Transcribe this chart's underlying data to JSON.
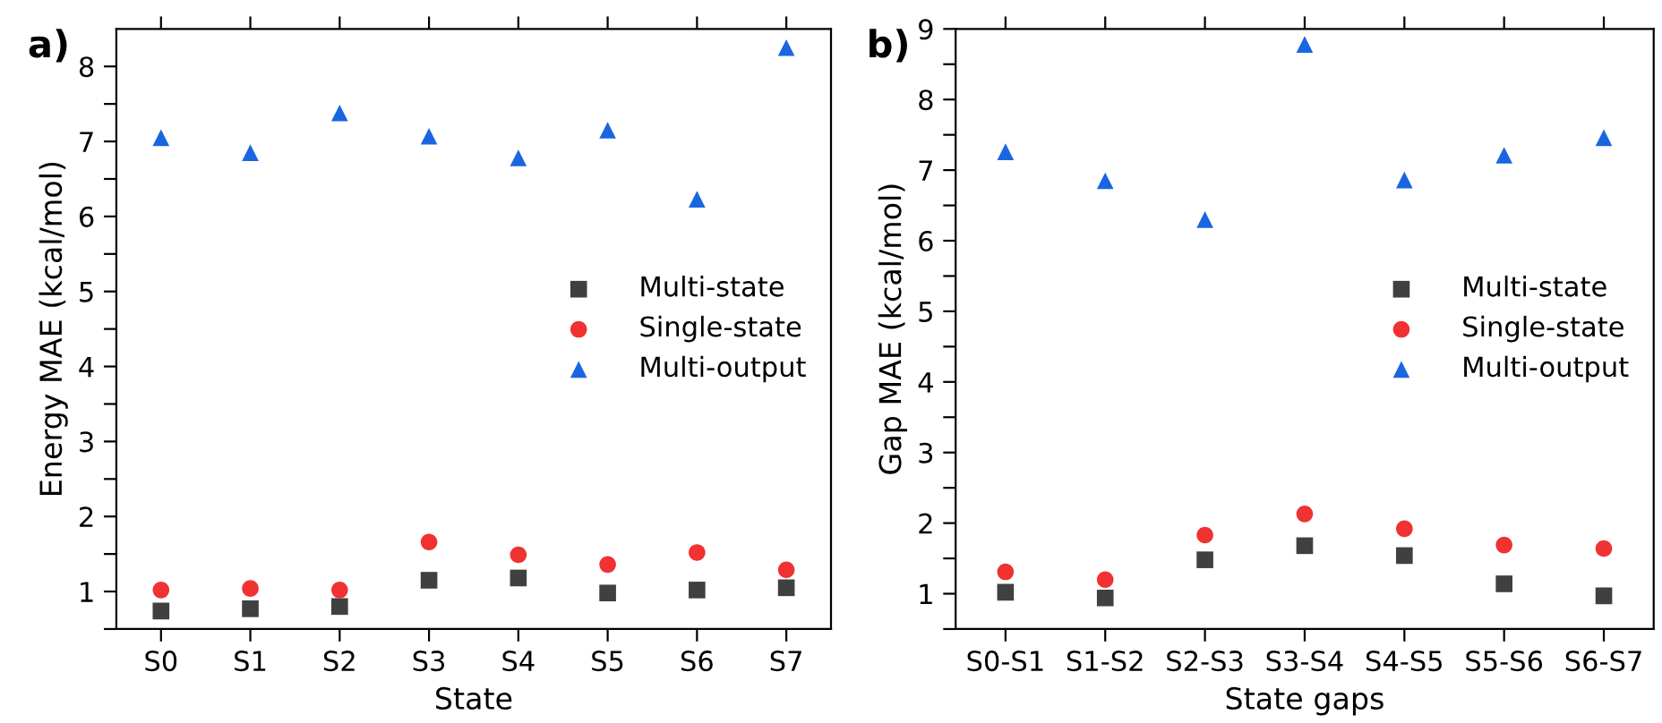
{
  "chart_data": [
    {
      "type": "scatter",
      "annotations": [
        "a)"
      ],
      "xlabel": "State",
      "ylabel": "Energy MAE (kcal/mol)",
      "categories": [
        "S0",
        "S1",
        "S2",
        "S3",
        "S4",
        "S5",
        "S6",
        "S7"
      ],
      "ylim": [
        0.5,
        8.5
      ],
      "yticks": [
        {
          "value": 0.5,
          "label": null
        },
        1,
        {
          "value": 1.5,
          "label": null
        },
        2,
        {
          "value": 2.5,
          "label": null
        },
        3,
        {
          "value": 3.5,
          "label": null
        },
        4,
        {
          "value": 4.5,
          "label": null
        },
        5,
        {
          "value": 5.5,
          "label": null
        },
        6,
        {
          "value": 6.5,
          "label": null
        },
        7,
        {
          "value": 7.5,
          "label": null
        },
        8
      ],
      "grid": false,
      "legend": "right",
      "series": [
        {
          "name": "Multi-state",
          "color": "#404040",
          "marker": "square",
          "values": [
            0.74,
            0.77,
            0.8,
            1.15,
            1.18,
            0.98,
            1.02,
            1.05
          ]
        },
        {
          "name": "Single-state",
          "color": "#f03232",
          "marker": "circle",
          "values": [
            1.02,
            1.04,
            1.02,
            1.66,
            1.49,
            1.36,
            1.52,
            1.29
          ]
        },
        {
          "name": "Multi-output",
          "color": "#1a66e0",
          "marker": "triangle",
          "values": [
            7.05,
            6.85,
            7.38,
            7.07,
            6.78,
            7.15,
            6.23,
            8.25
          ]
        }
      ]
    },
    {
      "type": "scatter",
      "annotations": [
        "b)"
      ],
      "xlabel": "State gaps",
      "ylabel": "Gap MAE (kcal/mol)",
      "categories": [
        "S0-S1",
        "S1-S2",
        "S2-S3",
        "S3-S4",
        "S4-S5",
        "S5-S6",
        "S6-S7"
      ],
      "ylim": [
        0.5,
        9
      ],
      "yticks": [
        {
          "value": 0.5,
          "label": null
        },
        1,
        {
          "value": 1.5,
          "label": null
        },
        2,
        {
          "value": 2.5,
          "label": null
        },
        3,
        {
          "value": 3.5,
          "label": null
        },
        4,
        {
          "value": 4.5,
          "label": null
        },
        5,
        {
          "value": 5.5,
          "label": null
        },
        6,
        {
          "value": 6.5,
          "label": null
        },
        7,
        {
          "value": 7.5,
          "label": null
        },
        8,
        {
          "value": 8.5,
          "label": null
        },
        9
      ],
      "grid": false,
      "legend": "right",
      "series": [
        {
          "name": "Multi-state",
          "color": "#404040",
          "marker": "square",
          "values": [
            1.02,
            0.94,
            1.48,
            1.68,
            1.54,
            1.14,
            0.97
          ]
        },
        {
          "name": "Single-state",
          "color": "#f03232",
          "marker": "circle",
          "values": [
            1.31,
            1.2,
            1.83,
            2.13,
            1.92,
            1.69,
            1.64
          ]
        },
        {
          "name": "Multi-output",
          "color": "#1a66e0",
          "marker": "triangle",
          "values": [
            7.26,
            6.85,
            6.3,
            8.78,
            6.86,
            7.21,
            7.46
          ]
        }
      ]
    }
  ]
}
